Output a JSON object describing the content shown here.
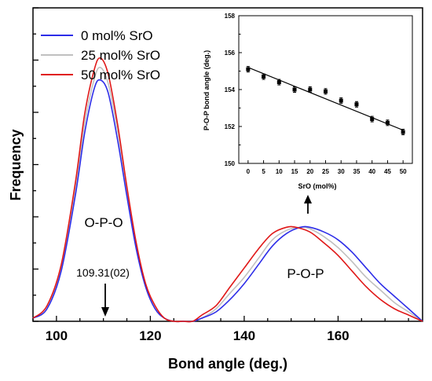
{
  "chart_data": [
    {
      "type": "line",
      "xlabel": "Bond angle (deg.)",
      "ylabel": "Frequency",
      "xlim": [
        95,
        178
      ],
      "ylim": [
        0,
        1.0
      ],
      "xticks": [
        100,
        120,
        140,
        160
      ],
      "yticks_labeled": false,
      "legend_position": "top-left",
      "grid": false,
      "series": [
        {
          "name": "0 mol% SrO",
          "color": "#2d2de8",
          "x": [
            95,
            98,
            101,
            104,
            106,
            108,
            109.3,
            111,
            113,
            115,
            117,
            119,
            121,
            123,
            125,
            127,
            129,
            131,
            134,
            137,
            140,
            143,
            146,
            149,
            152,
            154,
            157,
            160,
            163,
            166,
            169,
            172,
            175,
            178
          ],
          "y": [
            0.01,
            0.04,
            0.16,
            0.4,
            0.6,
            0.74,
            0.77,
            0.73,
            0.58,
            0.4,
            0.23,
            0.11,
            0.04,
            0.01,
            0.0,
            0.0,
            0.0,
            0.01,
            0.03,
            0.07,
            0.12,
            0.18,
            0.24,
            0.28,
            0.3,
            0.3,
            0.285,
            0.26,
            0.22,
            0.17,
            0.12,
            0.08,
            0.04,
            0.0
          ]
        },
        {
          "name": "25 mol% SrO",
          "color": "#c0c0c0",
          "x": [
            95,
            98,
            101,
            104,
            106,
            108,
            109.3,
            111,
            113,
            115,
            117,
            119,
            121,
            123,
            125,
            127,
            129,
            131,
            134,
            137,
            140,
            143,
            146,
            149,
            152,
            154,
            157,
            160,
            163,
            166,
            169,
            172,
            175,
            178
          ],
          "y": [
            0.01,
            0.04,
            0.17,
            0.42,
            0.63,
            0.77,
            0.81,
            0.76,
            0.61,
            0.42,
            0.24,
            0.11,
            0.04,
            0.01,
            0.0,
            0.0,
            0.0,
            0.01,
            0.04,
            0.09,
            0.14,
            0.2,
            0.26,
            0.29,
            0.3,
            0.295,
            0.27,
            0.235,
            0.19,
            0.14,
            0.1,
            0.06,
            0.03,
            0.0
          ]
        },
        {
          "name": "50 mol% SrO",
          "color": "#e01818",
          "x": [
            95,
            98,
            101,
            104,
            106,
            108,
            109.3,
            111,
            113,
            115,
            117,
            119,
            121,
            123,
            125,
            127,
            129,
            131,
            134,
            137,
            140,
            143,
            146,
            149,
            151,
            154,
            157,
            160,
            163,
            166,
            169,
            172,
            175,
            178
          ],
          "y": [
            0.01,
            0.05,
            0.18,
            0.44,
            0.66,
            0.8,
            0.84,
            0.79,
            0.63,
            0.43,
            0.25,
            0.12,
            0.05,
            0.01,
            0.0,
            0.0,
            0.0,
            0.02,
            0.05,
            0.11,
            0.17,
            0.23,
            0.28,
            0.3,
            0.3,
            0.285,
            0.25,
            0.21,
            0.16,
            0.11,
            0.07,
            0.04,
            0.02,
            0.0
          ]
        }
      ],
      "annotations": {
        "opo_label": "O-P-O",
        "pop_label": "P-O-P",
        "peak_value": "109.31(02)"
      }
    },
    {
      "type": "scatter",
      "xlabel": "SrO (mol%)",
      "ylabel": "P-O-P bond angle (deg.)",
      "xlim": [
        -3,
        53
      ],
      "ylim": [
        150,
        158
      ],
      "xticks": [
        0,
        5,
        10,
        15,
        20,
        25,
        30,
        35,
        40,
        45,
        50
      ],
      "yticks": [
        150,
        152,
        154,
        156,
        158
      ],
      "x": [
        0,
        5,
        10,
        15,
        20,
        25,
        30,
        35,
        40,
        45,
        50
      ],
      "y": [
        155.1,
        154.7,
        154.4,
        154.0,
        154.0,
        153.9,
        153.4,
        153.2,
        152.4,
        152.2,
        151.7
      ],
      "error": [
        0.15,
        0.15,
        0.15,
        0.15,
        0.15,
        0.15,
        0.15,
        0.15,
        0.15,
        0.15,
        0.15
      ],
      "fit_line": {
        "x": [
          0,
          50
        ],
        "y": [
          155.2,
          151.8
        ]
      }
    }
  ]
}
